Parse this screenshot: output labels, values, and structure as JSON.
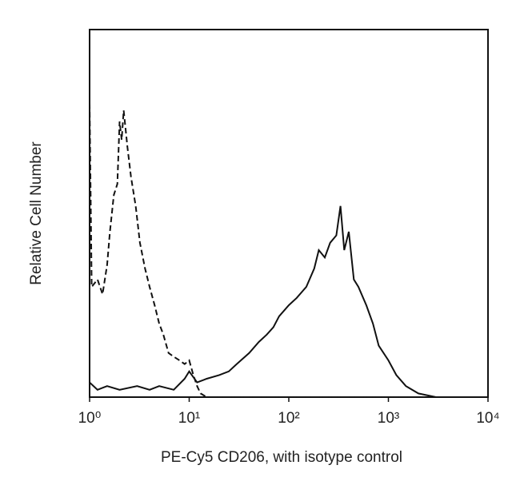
{
  "chart_data": {
    "type": "line",
    "xlabel": "PE-Cy5 CD206, with isotype control",
    "ylabel": "Relative Cell Number",
    "xscale": "log",
    "xlim": [
      1,
      10000
    ],
    "xticks": [
      {
        "value": 1,
        "label": "10⁰"
      },
      {
        "value": 10,
        "label": "10¹"
      },
      {
        "value": 100,
        "label": "10²"
      },
      {
        "value": 1000,
        "label": "10³"
      },
      {
        "value": 10000,
        "label": "10⁴"
      }
    ],
    "ylim": [
      0,
      100
    ],
    "series": [
      {
        "color": "#111111",
        "dash": true,
        "x": [
          1.0,
          1.05,
          1.2,
          1.35,
          1.5,
          1.6,
          1.75,
          1.9,
          2.0,
          2.1,
          2.2,
          2.4,
          2.6,
          2.9,
          3.2,
          3.6,
          4.0,
          4.5,
          5.0,
          5.5,
          6.2,
          7,
          8,
          9,
          10,
          11,
          12,
          13,
          15,
          20,
          100,
          10000
        ],
        "values": [
          80,
          30,
          32,
          28,
          36,
          45,
          55,
          58,
          75,
          70,
          78,
          68,
          60,
          52,
          42,
          35,
          30,
          25,
          20,
          17,
          12,
          11,
          10,
          9,
          10,
          6,
          3,
          1,
          0,
          0,
          0,
          0
        ]
      },
      {
        "color": "#111111",
        "dash": false,
        "x": [
          1,
          1.2,
          1.5,
          2,
          3,
          4,
          5,
          7,
          9,
          10,
          12,
          15,
          20,
          25,
          30,
          40,
          50,
          60,
          70,
          80,
          100,
          120,
          150,
          180,
          200,
          230,
          260,
          300,
          330,
          360,
          400,
          450,
          500,
          600,
          700,
          800,
          1000,
          1200,
          1500,
          2000,
          3000,
          10000
        ],
        "values": [
          4,
          2,
          3,
          2,
          3,
          2,
          3,
          2,
          5,
          7,
          4,
          5,
          6,
          7,
          9,
          12,
          15,
          17,
          19,
          22,
          25,
          27,
          30,
          35,
          40,
          38,
          42,
          44,
          52,
          40,
          45,
          32,
          30,
          25,
          20,
          14,
          10,
          6,
          3,
          1,
          0,
          0
        ]
      }
    ]
  }
}
